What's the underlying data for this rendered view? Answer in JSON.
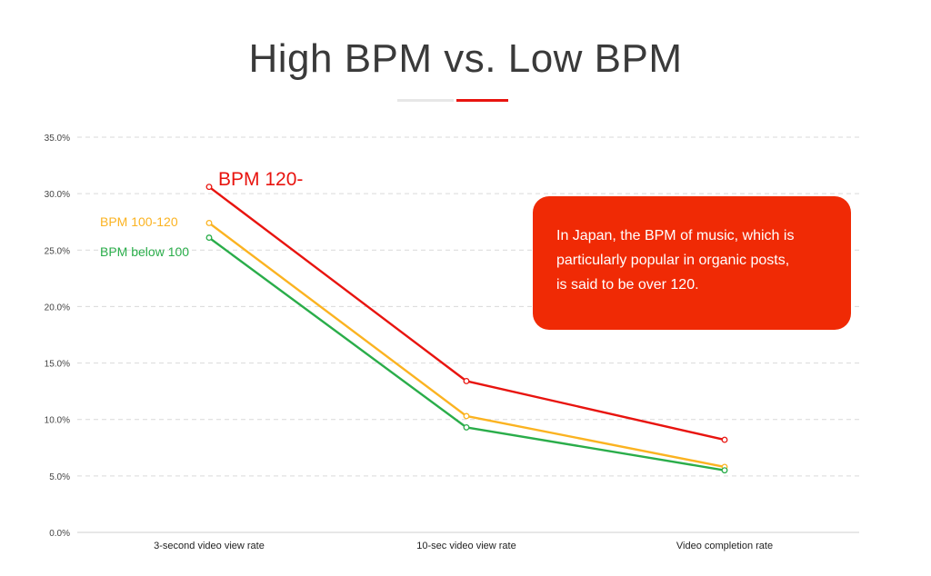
{
  "title": "High BPM vs. Low BPM",
  "callout": {
    "line1": "In Japan, the BPM of music, which is",
    "line2": "particularly popular in organic posts,",
    "line3": "is said to be over 120."
  },
  "colors": {
    "high": "#e8140f",
    "mid": "#fbb321",
    "low": "#2aad4a",
    "callout_bg": "#f02a05",
    "grid": "#d9d9d9",
    "title": "#3a3a3a"
  },
  "chart_data": {
    "type": "line",
    "title": "High BPM vs. Low BPM",
    "xlabel": "",
    "ylabel": "",
    "categories": [
      "3-second video view rate",
      "10-sec video view rate",
      "Video completion rate"
    ],
    "ylim": [
      0,
      35
    ],
    "y_ticks": [
      0,
      5,
      10,
      15,
      20,
      25,
      30,
      35
    ],
    "y_tick_labels": [
      "0.0%",
      "5.0%",
      "10.0%",
      "15.0%",
      "20.0%",
      "25.0%",
      "30.0%",
      "35.0%"
    ],
    "grid": "horizontal dashed",
    "series": [
      {
        "name": "BPM 120-",
        "color": "#e8140f",
        "values": [
          30.6,
          13.4,
          8.2
        ]
      },
      {
        "name": "BPM 100-120",
        "color": "#fbb321",
        "values": [
          27.4,
          10.3,
          5.8
        ]
      },
      {
        "name": "BPM below 100",
        "color": "#2aad4a",
        "values": [
          26.1,
          9.3,
          5.5
        ]
      }
    ],
    "legend": "inline labels next to first points"
  }
}
